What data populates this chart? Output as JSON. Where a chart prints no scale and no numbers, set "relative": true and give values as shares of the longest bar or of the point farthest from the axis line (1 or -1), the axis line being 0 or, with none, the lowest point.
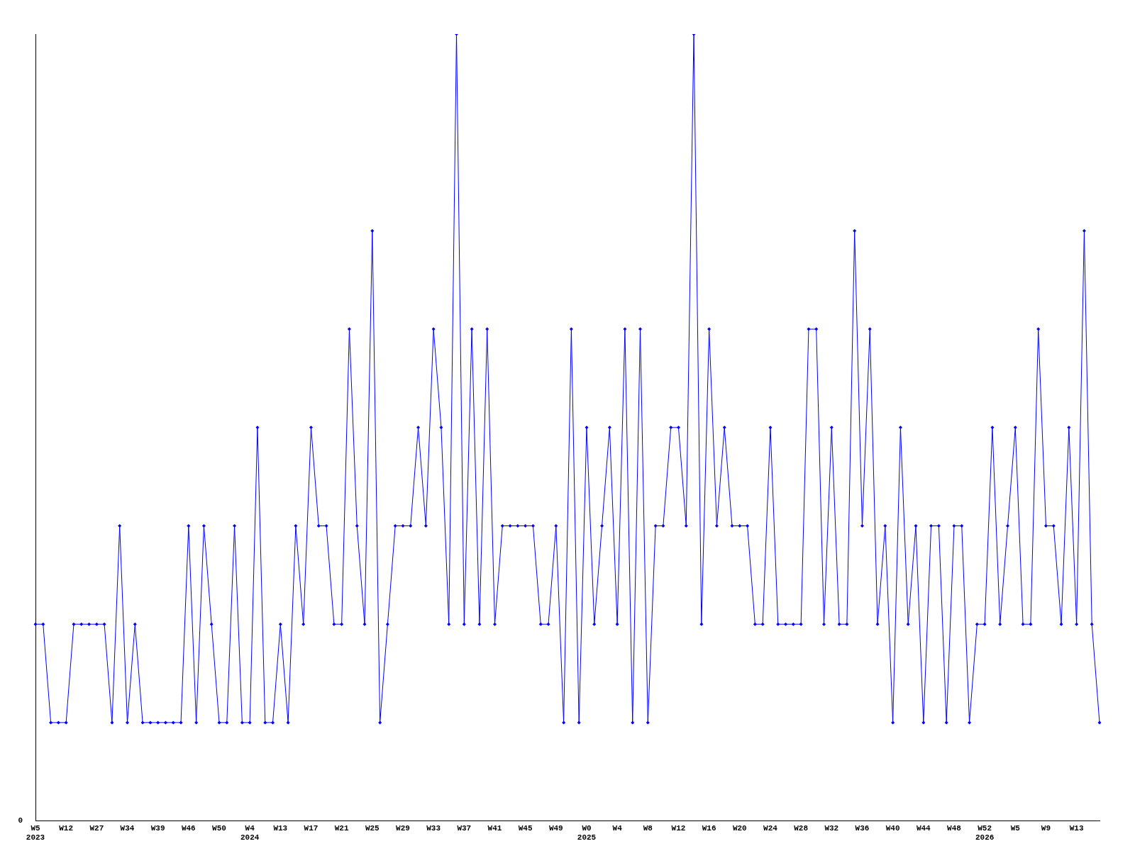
{
  "chart_data": {
    "type": "line",
    "relative": true,
    "marker": "diamond",
    "legend": false,
    "grid": false,
    "annotations": [
      "0"
    ],
    "categories": [
      "W5\n2023",
      null,
      null,
      null,
      "W12",
      null,
      null,
      null,
      "W27",
      null,
      null,
      null,
      "W34",
      null,
      null,
      null,
      "W39",
      null,
      null,
      null,
      "W46",
      null,
      null,
      null,
      "W50",
      null,
      null,
      null,
      "W4\n2024",
      null,
      null,
      null,
      "W13",
      null,
      null,
      null,
      "W17",
      null,
      null,
      null,
      "W21",
      null,
      null,
      null,
      "W25",
      null,
      null,
      null,
      "W29",
      null,
      null,
      null,
      "W33",
      null,
      null,
      null,
      "W37",
      null,
      null,
      null,
      "W41",
      null,
      null,
      null,
      "W45",
      null,
      null,
      null,
      "W49",
      null,
      null,
      null,
      "W0\n2025",
      null,
      null,
      null,
      "W4",
      null,
      null,
      null,
      "W8",
      null,
      null,
      null,
      "W12",
      null,
      null,
      null,
      "W16",
      null,
      null,
      null,
      "W20",
      null,
      null,
      null,
      "W24",
      null,
      null,
      null,
      "W28",
      null,
      null,
      null,
      "W32",
      null,
      null,
      null,
      "W36",
      null,
      null,
      null,
      "W40",
      null,
      null,
      null,
      "W44",
      null,
      null,
      null,
      "W48",
      null,
      null,
      null,
      "W52\n2026",
      null,
      null,
      null,
      "W5",
      null,
      null,
      null,
      "W9",
      null,
      null,
      null,
      "W13",
      null,
      null,
      null
    ],
    "series": [
      {
        "color": "#0000ff",
        "values": [
          0.25,
          0.25,
          0.125,
          0.125,
          0.125,
          0.25,
          0.25,
          0.25,
          0.25,
          0.25,
          0.125,
          0.375,
          0.125,
          0.25,
          0.125,
          0.125,
          0.125,
          0.125,
          0.125,
          0.125,
          0.375,
          0.125,
          0.375,
          0.25,
          0.125,
          0.125,
          0.375,
          0.125,
          0.125,
          0.5,
          0.125,
          0.125,
          0.25,
          0.125,
          0.375,
          0.25,
          0.5,
          0.375,
          0.375,
          0.25,
          0.25,
          0.625,
          0.375,
          0.25,
          0.75,
          0.125,
          0.25,
          0.375,
          0.375,
          0.375,
          0.5,
          0.375,
          0.625,
          0.5,
          0.25,
          1,
          0.25,
          0.625,
          0.25,
          0.625,
          0.25,
          0.375,
          0.375,
          0.375,
          0.375,
          0.375,
          0.25,
          0.25,
          0.375,
          0.125,
          0.625,
          0.125,
          0.5,
          0.25,
          0.375,
          0.5,
          0.25,
          0.625,
          0.125,
          0.625,
          0.125,
          0.375,
          0.375,
          0.5,
          0.5,
          0.375,
          1,
          0.25,
          0.625,
          0.375,
          0.5,
          0.375,
          0.375,
          0.375,
          0.25,
          0.25,
          0.5,
          0.25,
          0.25,
          0.25,
          0.25,
          0.625,
          0.625,
          0.25,
          0.5,
          0.25,
          0.25,
          0.75,
          0.375,
          0.625,
          0.25,
          0.375,
          0.125,
          0.5,
          0.25,
          0.375,
          0.125,
          0.375,
          0.375,
          0.125,
          0.375,
          0.375,
          0.125,
          0.25,
          0.25,
          0.5,
          0.25,
          0.375,
          0.5,
          0.25,
          0.25,
          0.625,
          0.375,
          0.375,
          0.25,
          0.5,
          0.25,
          0.75,
          0.25,
          0.125
        ]
      }
    ]
  }
}
